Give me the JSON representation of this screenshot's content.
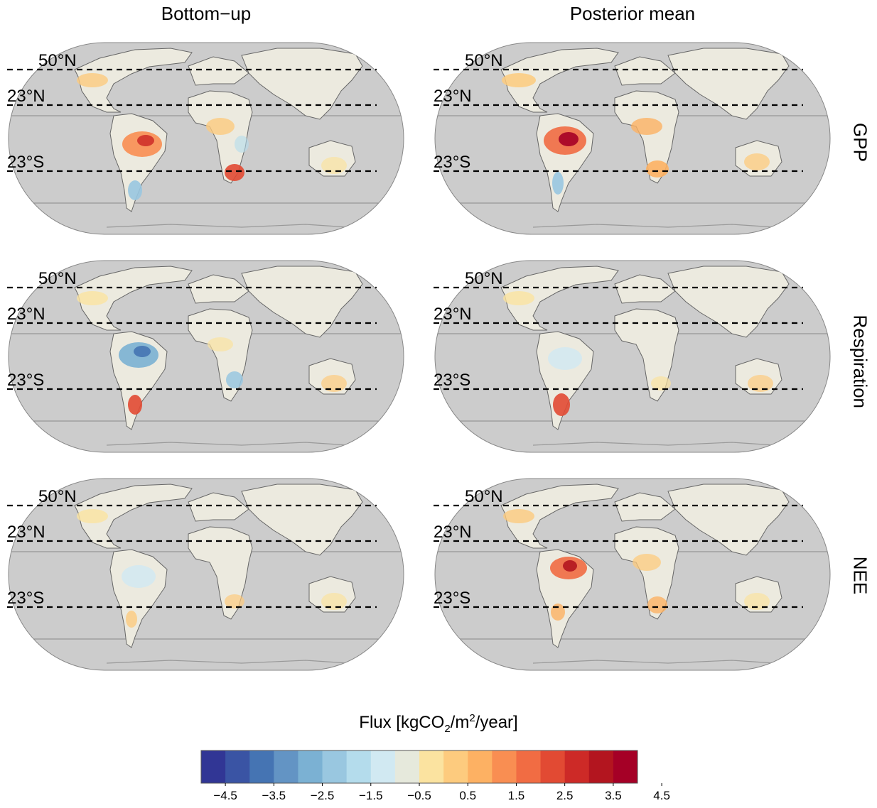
{
  "columns": [
    "Bottom−up",
    "Posterior mean"
  ],
  "rows": [
    "GPP",
    "Respiration",
    "NEE"
  ],
  "latitude_labels": [
    "50°N",
    "23°N",
    "23°S"
  ],
  "legend": {
    "title_prefix": "Flux [kgCO",
    "title_sub": "2",
    "title_mid": "/m",
    "title_sup": "2",
    "title_suffix": "/year]",
    "tick_labels": [
      "−4.5",
      "−3.5",
      "−2.5",
      "−1.5",
      "−0.5",
      "0.5",
      "1.5",
      "2.5",
      "3.5",
      "4.5"
    ],
    "colors": [
      "#313695",
      "#3a54a4",
      "#4574b3",
      "#6394c4",
      "#7bb1d3",
      "#99c7e0",
      "#b4dcec",
      "#d1e9f2",
      "#e6e9dc",
      "#fbe3a0",
      "#fdcb7e",
      "#fdb163",
      "#f98e52",
      "#f16c43",
      "#e24a33",
      "#cd2a27",
      "#b3151f",
      "#a50026"
    ]
  },
  "chart_data": {
    "type": "heatmap",
    "description_units": "kgCO2/m2/year",
    "colorbar_range": [
      -4.5,
      4.5
    ],
    "colorbar_step": 0.5,
    "panels": [
      {
        "row": "GPP",
        "column": "Bottom−up"
      },
      {
        "row": "GPP",
        "column": "Posterior mean"
      },
      {
        "row": "Respiration",
        "column": "Bottom−up"
      },
      {
        "row": "Respiration",
        "column": "Posterior mean"
      },
      {
        "row": "NEE",
        "column": "Bottom−up"
      },
      {
        "row": "NEE",
        "column": "Posterior mean"
      }
    ]
  }
}
